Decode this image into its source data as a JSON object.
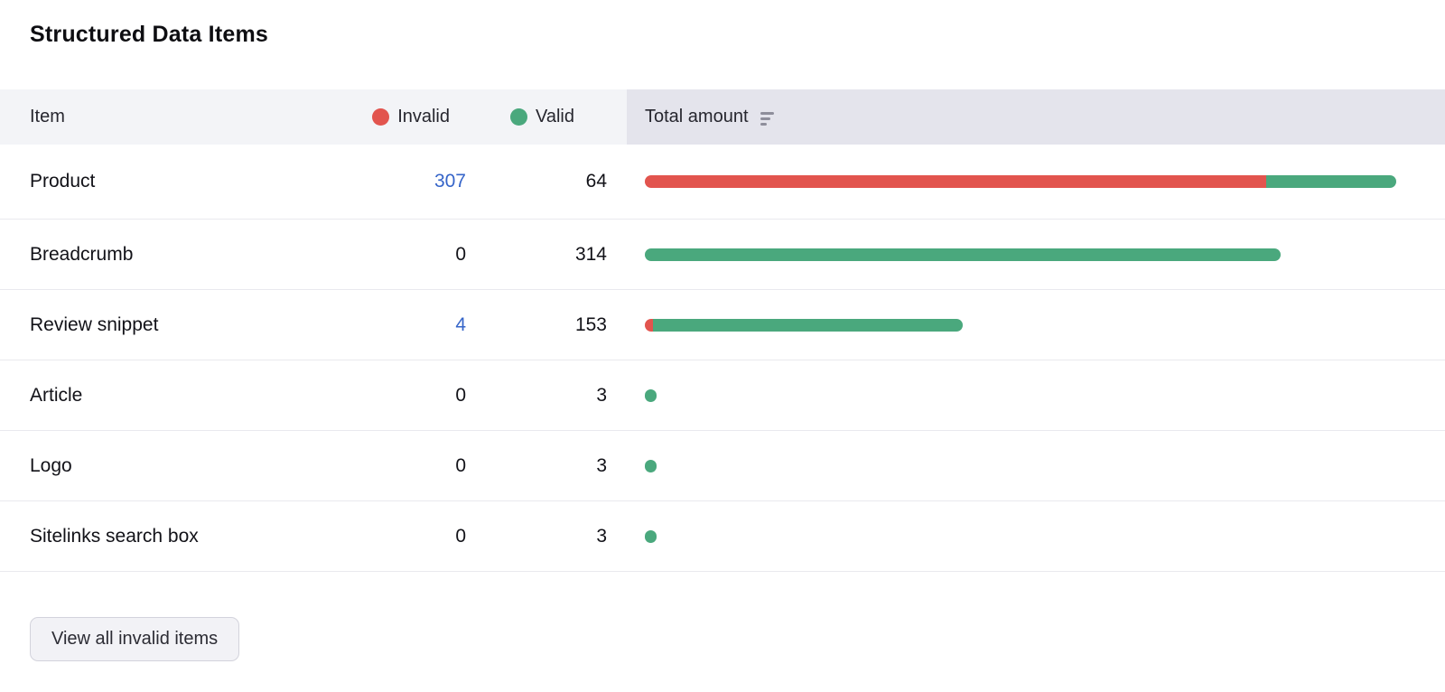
{
  "title": "Structured Data Items",
  "colors": {
    "invalid": "#e2544e",
    "valid": "#4aa87d",
    "link": "#3665c9"
  },
  "table": {
    "columns": {
      "item": "Item",
      "invalid": "Invalid",
      "valid": "Valid",
      "total": "Total amount"
    },
    "rows": [
      {
        "item": "Product",
        "invalid": 307,
        "valid": 64,
        "invalid_link": true
      },
      {
        "item": "Breadcrumb",
        "invalid": 0,
        "valid": 314,
        "invalid_link": false
      },
      {
        "item": "Review snippet",
        "invalid": 4,
        "valid": 153,
        "invalid_link": true
      },
      {
        "item": "Article",
        "invalid": 0,
        "valid": 3,
        "invalid_link": false
      },
      {
        "item": "Logo",
        "invalid": 0,
        "valid": 3,
        "invalid_link": false
      },
      {
        "item": "Sitelinks search box",
        "invalid": 0,
        "valid": 3,
        "invalid_link": false
      }
    ]
  },
  "footer": {
    "view_all_button": "View all invalid items"
  },
  "chart_data": {
    "type": "bar",
    "orientation": "horizontal",
    "stacked": true,
    "title": "Structured Data Items",
    "categories": [
      "Product",
      "Breadcrumb",
      "Review snippet",
      "Article",
      "Logo",
      "Sitelinks search box"
    ],
    "series": [
      {
        "name": "Invalid",
        "color": "#e2544e",
        "values": [
          307,
          0,
          4,
          0,
          0,
          0
        ]
      },
      {
        "name": "Valid",
        "color": "#4aa87d",
        "values": [
          64,
          314,
          153,
          3,
          3,
          3
        ]
      }
    ],
    "x_max": 371,
    "legend_position": "header",
    "grid": false
  }
}
